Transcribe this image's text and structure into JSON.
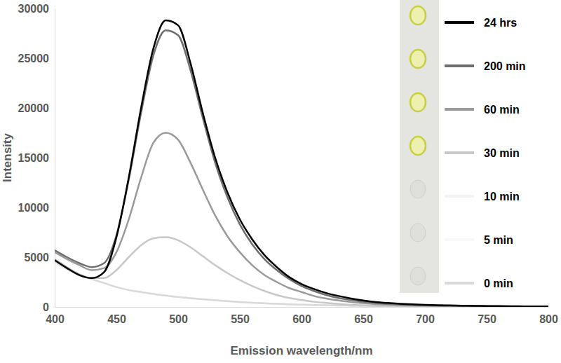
{
  "chart_data": {
    "type": "line",
    "x_label": "Emission wavelength/nm",
    "y_label": "Intensity",
    "x": [
      400,
      410,
      420,
      430,
      440,
      450,
      460,
      470,
      480,
      490,
      500,
      510,
      520,
      530,
      540,
      550,
      560,
      570,
      580,
      590,
      600,
      610,
      620,
      630,
      640,
      650,
      660,
      670,
      680,
      690,
      700,
      710,
      720,
      730,
      740,
      750,
      760,
      770,
      780,
      790,
      800
    ],
    "series": [
      {
        "name": "24 hrs",
        "color": "#000000",
        "values": [
          4700,
          3900,
          3200,
          2900,
          3500,
          7000,
          13000,
          20000,
          26000,
          28800,
          28300,
          24500,
          19500,
          15000,
          11500,
          8800,
          6800,
          5200,
          4000,
          3000,
          2300,
          1800,
          1400,
          1100,
          850,
          650,
          500,
          400,
          320,
          260,
          220,
          180,
          150,
          130,
          110,
          95,
          80,
          70,
          60,
          55,
          50
        ]
      },
      {
        "name": "200 min",
        "color": "#6e6e6e",
        "values": [
          5700,
          5000,
          4400,
          4000,
          4400,
          7200,
          12800,
          19500,
          25300,
          27800,
          27300,
          23800,
          19000,
          14500,
          11000,
          8300,
          6300,
          4800,
          3700,
          2800,
          2100,
          1600,
          1200,
          900,
          700,
          530,
          400,
          310,
          250,
          200,
          170,
          140,
          120,
          100,
          90,
          80,
          70,
          60,
          55,
          50,
          45
        ]
      },
      {
        "name": "60 min",
        "color": "#9a9a9a",
        "values": [
          5500,
          4800,
          4200,
          3700,
          3900,
          5500,
          8800,
          13000,
          16500,
          17500,
          16800,
          14500,
          11800,
          9200,
          7100,
          5500,
          4200,
          3200,
          2500,
          1900,
          1500,
          1100,
          850,
          650,
          500,
          380,
          290,
          220,
          170,
          140,
          120,
          100,
          85,
          75,
          65,
          55,
          50,
          45,
          40,
          35,
          30
        ]
      },
      {
        "name": "30 min",
        "color": "#c8c8c8",
        "values": [
          4800,
          4000,
          3300,
          2900,
          2900,
          3700,
          5000,
          6200,
          6900,
          7000,
          6700,
          6000,
          5100,
          4200,
          3400,
          2700,
          2100,
          1600,
          1200,
          900,
          700,
          520,
          400,
          300,
          220,
          170,
          130,
          100,
          80,
          65,
          55,
          45,
          40,
          35,
          30,
          25,
          22,
          20,
          18,
          16,
          15
        ]
      },
      {
        "name": "10 min",
        "color": "#f4f4f4",
        "values": [
          4600,
          3800,
          3200,
          2800,
          2400,
          2000,
          1700,
          1500,
          1300,
          1150,
          1000,
          880,
          770,
          670,
          580,
          500,
          430,
          370,
          320,
          270,
          230,
          200,
          170,
          145,
          125,
          105,
          90,
          78,
          67,
          58,
          50,
          43,
          37,
          32,
          28,
          24,
          21,
          18,
          16,
          14,
          12
        ]
      },
      {
        "name": "5 min",
        "color": "#f8f8f8",
        "values": [
          4600,
          3800,
          3200,
          2800,
          2400,
          2000,
          1700,
          1500,
          1300,
          1150,
          1000,
          880,
          770,
          670,
          580,
          500,
          430,
          370,
          320,
          270,
          230,
          200,
          170,
          145,
          125,
          105,
          90,
          78,
          67,
          58,
          50,
          43,
          37,
          32,
          28,
          24,
          21,
          18,
          16,
          14,
          12
        ]
      },
      {
        "name": "0 min",
        "color": "#d9d9d9",
        "values": [
          4600,
          3800,
          3200,
          2800,
          2400,
          2000,
          1700,
          1500,
          1300,
          1150,
          1000,
          880,
          770,
          670,
          580,
          500,
          430,
          370,
          320,
          270,
          230,
          200,
          170,
          145,
          125,
          105,
          90,
          78,
          67,
          58,
          50,
          43,
          37,
          32,
          28,
          24,
          21,
          18,
          16,
          14,
          12
        ]
      }
    ],
    "xlim": [
      400,
      800
    ],
    "xticks": [
      400,
      450,
      500,
      550,
      600,
      650,
      700,
      750,
      800
    ],
    "ylim": [
      0,
      30000
    ],
    "yticks": [
      0,
      5000,
      10000,
      15000,
      20000,
      25000,
      30000
    ],
    "grid": false,
    "legend": "upper right"
  }
}
